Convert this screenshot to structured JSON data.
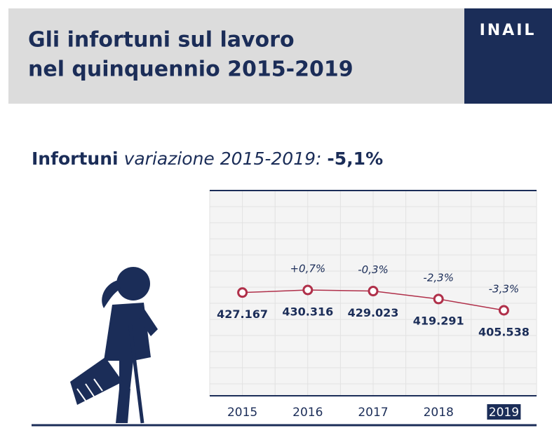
{
  "header": {
    "title_lines": [
      "Gli infortuni sul lavoro",
      "nel quinquennio 2015-2019"
    ],
    "logo": "INAIL"
  },
  "chart_data": {
    "type": "line",
    "headline": {
      "label": "Infortuni",
      "subtitle": "variazione 2015-2019:",
      "change": "-5,1%"
    },
    "categories": [
      "2015",
      "2016",
      "2017",
      "2018",
      "2019"
    ],
    "values": [
      427167,
      430316,
      429023,
      419291,
      405538
    ],
    "value_labels": [
      "427.167",
      "430.316",
      "429.023",
      "419.291",
      "405.538"
    ],
    "annotations": [
      {
        "category": "2016",
        "text": "+0,7%"
      },
      {
        "category": "2017",
        "text": "-0,3%"
      },
      {
        "category": "2018",
        "text": "-2,3%"
      },
      {
        "category": "2019",
        "text": "-3,3%"
      }
    ],
    "color": "#b0304a",
    "highlight_category": "2019",
    "grid": true
  }
}
